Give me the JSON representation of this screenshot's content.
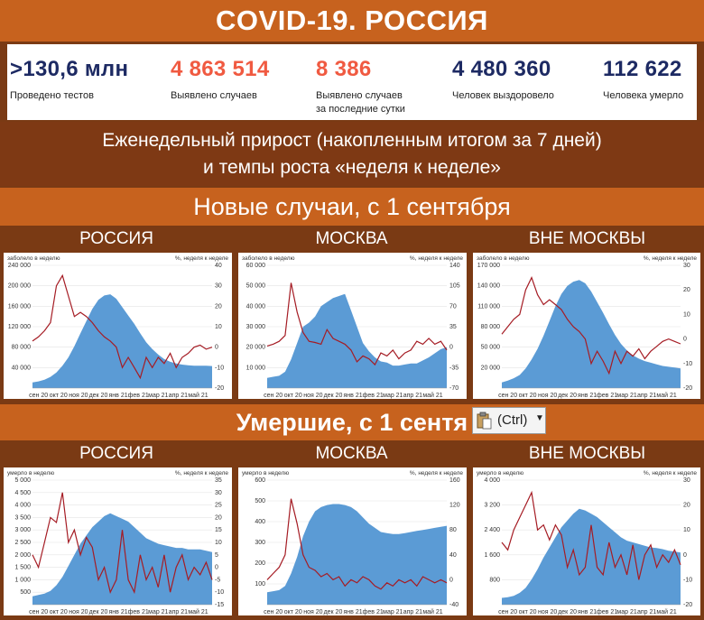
{
  "title": "COVID-19. РОССИЯ",
  "stats": [
    {
      "value": ">130,6 млн",
      "label_lines": [
        "Проведено тестов"
      ],
      "color": "#1d2a63"
    },
    {
      "value": "4 863 514",
      "label_lines": [
        "Выявлено случаев"
      ],
      "color": "#f05a41"
    },
    {
      "value": "8 386",
      "label_lines": [
        "Выявлено случаев",
        "за последние сутки"
      ],
      "color": "#f05a41"
    },
    {
      "value": "4 480 360",
      "label_lines": [
        "Человек выздоровело"
      ],
      "color": "#1d2a63"
    },
    {
      "value": "112 622",
      "label_lines": [
        "Человека умерло"
      ],
      "color": "#1d2a63"
    }
  ],
  "weekly_header": [
    "Еженедельный прирост (накопленным итогом за 7 дней)",
    "и темпы роста «неделя к неделе»"
  ],
  "section_cases": "Новые случаи, с 1 сентября",
  "section_deaths": "Умершие, с 1 сентя",
  "paste_badge": "(Ctrl)",
  "colors": {
    "area": "#5b9bd5",
    "line": "#a51c24",
    "band": "#c7621e",
    "dark_band": "#7a3a14"
  },
  "chart_data": [
    {
      "id": "cases-russia",
      "type": "area",
      "title": "РОССИЯ",
      "left_caption": "заболело в неделю",
      "right_caption": "%, неделя к неделе",
      "x_ticks": [
        "сен 20",
        "окт 20",
        "ноя 20",
        "дек 20",
        "янв 21",
        "фев 21",
        "мар 21",
        "апр 21",
        "май 21"
      ],
      "left_ticks": [
        "240 000",
        "200 000",
        "160 000",
        "120 000",
        "80 000",
        "40 000"
      ],
      "right_ticks": [
        "40",
        "30",
        "20",
        "10",
        "0",
        "-10",
        "-20"
      ],
      "left_range": [
        20000,
        240000
      ],
      "right_range": [
        -20,
        40
      ],
      "series": [
        {
          "axis": "left",
          "kind": "area",
          "values": [
            30000,
            32000,
            35000,
            40000,
            48000,
            60000,
            75000,
            95000,
            118000,
            140000,
            162000,
            178000,
            186000,
            188000,
            180000,
            165000,
            150000,
            135000,
            118000,
            102000,
            90000,
            80000,
            72000,
            67000,
            64000,
            62000,
            61000,
            60000,
            60000,
            60000,
            59500
          ]
        },
        {
          "axis": "right",
          "kind": "line",
          "values": [
            3,
            5,
            8,
            12,
            30,
            35,
            25,
            15,
            17,
            15,
            12,
            8,
            5,
            3,
            0,
            -10,
            -5,
            -10,
            -15,
            -5,
            -10,
            -5,
            -8,
            -3,
            -10,
            -5,
            -3,
            0,
            1,
            -1,
            0
          ]
        }
      ]
    },
    {
      "id": "cases-moscow",
      "type": "area",
      "title": "МОСКВА",
      "left_caption": "заболело в неделю",
      "right_caption": "%, неделя к неделе",
      "x_ticks": [
        "сен 20",
        "окт 20",
        "ноя 20",
        "дек 20",
        "янв 21",
        "фев 21",
        "мар 21",
        "апр 21",
        "май 21"
      ],
      "left_ticks": [
        "60 000",
        "50 000",
        "40 000",
        "30 000",
        "20 000",
        "10 000"
      ],
      "right_ticks": [
        "140",
        "105",
        "70",
        "35",
        "0",
        "-35",
        "-70"
      ],
      "left_range": [
        0,
        60000
      ],
      "right_range": [
        -70,
        140
      ],
      "series": [
        {
          "axis": "left",
          "kind": "area",
          "values": [
            5000,
            5500,
            6000,
            8000,
            14000,
            22000,
            30000,
            32000,
            35000,
            40000,
            42000,
            44000,
            45000,
            46000,
            38000,
            30000,
            22000,
            18000,
            15000,
            13000,
            12500,
            11000,
            11000,
            11500,
            12000,
            12000,
            13500,
            15000,
            17000,
            19000,
            20000
          ]
        },
        {
          "axis": "right",
          "kind": "line",
          "values": [
            2,
            5,
            10,
            20,
            110,
            60,
            25,
            10,
            8,
            5,
            30,
            15,
            10,
            5,
            -5,
            -25,
            -15,
            -20,
            -30,
            -10,
            -15,
            -5,
            -20,
            -10,
            -5,
            10,
            5,
            15,
            5,
            10,
            -5
          ]
        }
      ]
    },
    {
      "id": "cases-outside",
      "type": "area",
      "title": "ВНЕ МОСКВЫ",
      "left_caption": "заболело в неделю",
      "right_caption": "%, неделя к неделе",
      "x_ticks": [
        "сен 20",
        "окт 20",
        "ноя 20",
        "дек 20",
        "янв 21",
        "фев 21",
        "мар 21",
        "апр 21",
        "май 21"
      ],
      "left_ticks": [
        "170 000",
        "140 000",
        "110 000",
        "80 000",
        "50 000",
        "20 000"
      ],
      "right_ticks": [
        "30",
        "20",
        "10",
        "0",
        "-10",
        "-20"
      ],
      "left_range": [
        20000,
        170000
      ],
      "right_range": [
        -20,
        30
      ],
      "series": [
        {
          "axis": "left",
          "kind": "area",
          "values": [
            27000,
            29000,
            32000,
            36000,
            44000,
            55000,
            68000,
            84000,
            102000,
            120000,
            135000,
            145000,
            150000,
            152000,
            148000,
            138000,
            125000,
            112000,
            98000,
            85000,
            74000,
            66000,
            60000,
            56000,
            53000,
            51000,
            49000,
            47000,
            46000,
            45000,
            44000
          ]
        },
        {
          "axis": "right",
          "kind": "line",
          "values": [
            2,
            5,
            8,
            10,
            20,
            25,
            18,
            14,
            16,
            14,
            12,
            8,
            5,
            3,
            0,
            -10,
            -5,
            -9,
            -14,
            -5,
            -10,
            -5,
            -7,
            -4,
            -8,
            -5,
            -3,
            -1,
            0,
            -1,
            -2
          ]
        }
      ]
    },
    {
      "id": "deaths-russia",
      "type": "area",
      "title": "РОССИЯ",
      "left_caption": "умерло в неделю",
      "right_caption": "%, неделя к неделе",
      "x_ticks": [
        "сен 20",
        "окт 20",
        "ноя 20",
        "дек 20",
        "янв 21",
        "фев 21",
        "мар 21",
        "апр 21",
        "май 21"
      ],
      "left_ticks": [
        "5 000",
        "4 500",
        "4 000",
        "3 500",
        "3 000",
        "2 500",
        "2 000",
        "1 500",
        "1 000",
        "500"
      ],
      "right_ticks": [
        "35",
        "30",
        "25",
        "20",
        "15",
        "10",
        "5",
        "0",
        "-5",
        "-10",
        "-15"
      ],
      "left_range": [
        500,
        5000
      ],
      "right_range": [
        -15,
        35
      ],
      "series": [
        {
          "axis": "left",
          "kind": "area",
          "values": [
            800,
            850,
            900,
            1000,
            1200,
            1500,
            1900,
            2300,
            2700,
            3000,
            3300,
            3500,
            3700,
            3800,
            3700,
            3600,
            3500,
            3300,
            3100,
            2900,
            2800,
            2700,
            2650,
            2600,
            2550,
            2550,
            2500,
            2500,
            2500,
            2450,
            2400
          ]
        },
        {
          "axis": "right",
          "kind": "line",
          "values": [
            5,
            0,
            10,
            20,
            18,
            30,
            10,
            15,
            5,
            12,
            8,
            -5,
            0,
            -10,
            -5,
            15,
            -5,
            -10,
            5,
            -5,
            0,
            -8,
            5,
            -10,
            0,
            5,
            -5,
            0,
            -3,
            2,
            -5
          ]
        }
      ]
    },
    {
      "id": "deaths-moscow",
      "type": "area",
      "title": "МОСКВА",
      "left_caption": "умерло в неделю",
      "right_caption": "%, неделя к неделе",
      "x_ticks": [
        "сен 20",
        "окт 20",
        "ноя 20",
        "дек 20",
        "янв 21",
        "фев 21",
        "мар 21",
        "апр 21",
        "май 21"
      ],
      "left_ticks": [
        "600",
        "500",
        "400",
        "300",
        "200",
        "100"
      ],
      "right_ticks": [
        "160",
        "120",
        "80",
        "40",
        "0",
        "-40"
      ],
      "left_range": [
        50,
        650
      ],
      "right_range": [
        -40,
        160
      ],
      "series": [
        {
          "axis": "left",
          "kind": "area",
          "values": [
            110,
            115,
            120,
            140,
            200,
            280,
            380,
            450,
            500,
            520,
            530,
            535,
            535,
            530,
            520,
            500,
            470,
            440,
            420,
            400,
            395,
            390,
            390,
            395,
            400,
            405,
            410,
            415,
            420,
            425,
            430
          ]
        },
        {
          "axis": "right",
          "kind": "line",
          "values": [
            0,
            10,
            20,
            40,
            130,
            90,
            40,
            20,
            15,
            5,
            10,
            0,
            5,
            -10,
            0,
            -5,
            5,
            0,
            -10,
            -15,
            -5,
            -10,
            0,
            -5,
            0,
            -10,
            5,
            0,
            -5,
            0,
            -5
          ]
        }
      ]
    },
    {
      "id": "deaths-outside",
      "type": "area",
      "title": "ВНЕ МОСКВЫ",
      "left_caption": "умерло в неделю",
      "right_caption": "%, неделя к неделе",
      "x_ticks": [
        "сен 20",
        "окт 20",
        "ноя 20",
        "дек 20",
        "янв 21",
        "фев 21",
        "мар 21",
        "апр 21",
        "май 21"
      ],
      "left_ticks": [
        "4 000",
        "3 200",
        "2 400",
        "1 600",
        "800"
      ],
      "right_ticks": [
        "30",
        "20",
        "10",
        "0",
        "-10",
        "-20"
      ],
      "left_range": [
        500,
        4200
      ],
      "right_range": [
        -20,
        30
      ],
      "series": [
        {
          "axis": "left",
          "kind": "area",
          "values": [
            700,
            720,
            760,
            850,
            1000,
            1250,
            1550,
            1900,
            2200,
            2500,
            2800,
            3000,
            3200,
            3350,
            3300,
            3200,
            3100,
            2950,
            2800,
            2650,
            2500,
            2400,
            2350,
            2300,
            2250,
            2200,
            2180,
            2150,
            2100,
            2080,
            2050
          ]
        },
        {
          "axis": "right",
          "kind": "line",
          "values": [
            5,
            2,
            10,
            15,
            20,
            25,
            10,
            12,
            6,
            12,
            8,
            -5,
            2,
            -8,
            -5,
            12,
            -5,
            -8,
            5,
            -5,
            0,
            -8,
            4,
            -10,
            0,
            4,
            -5,
            0,
            -3,
            2,
            -4
          ]
        }
      ]
    }
  ]
}
